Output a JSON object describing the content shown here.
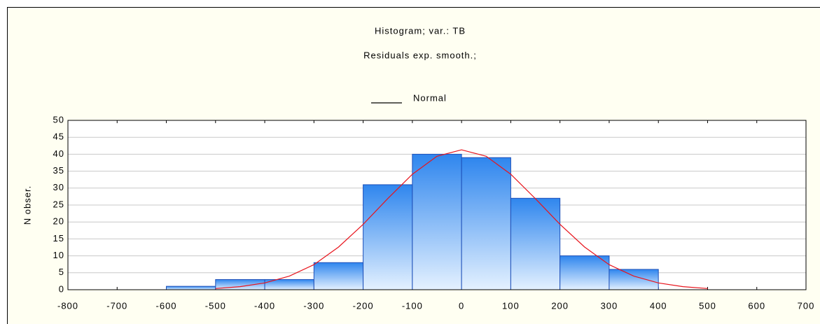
{
  "chart_data": {
    "type": "histogram",
    "title": "Histogram; var.: TB",
    "subtitle": "Residuals exp. smooth.;",
    "ylabel": "N obser.",
    "bins": [
      -600,
      -500,
      -400,
      -300,
      -200,
      -100,
      0,
      100,
      200,
      300,
      400
    ],
    "values": [
      1,
      3,
      3,
      8,
      31,
      40,
      39,
      27,
      10,
      6
    ],
    "color": "#3a8ef0",
    "series": [
      {
        "name": "Normal",
        "color": "#e8141c",
        "x": [
          -500,
          -450,
          -400,
          -350,
          -300,
          -250,
          -200,
          -150,
          -100,
          -50,
          0,
          50,
          100,
          150,
          200,
          250,
          300,
          350,
          400,
          450,
          500
        ],
        "values": [
          0.35,
          0.9,
          2.0,
          4.0,
          7.4,
          12.6,
          19.3,
          26.9,
          34.1,
          39.4,
          41.3,
          39.4,
          34.1,
          26.9,
          19.3,
          12.6,
          7.4,
          4.0,
          2.0,
          0.9,
          0.35
        ]
      }
    ],
    "xlim": [
      -800,
      700
    ],
    "xticks": [
      -800,
      -700,
      -600,
      -500,
      -400,
      -300,
      -200,
      -100,
      0,
      100,
      200,
      300,
      400,
      500,
      600,
      700
    ],
    "ylim": [
      0,
      50
    ],
    "yticks": [
      0,
      5,
      10,
      15,
      20,
      25,
      30,
      35,
      40,
      45,
      50
    ],
    "grid": true
  }
}
